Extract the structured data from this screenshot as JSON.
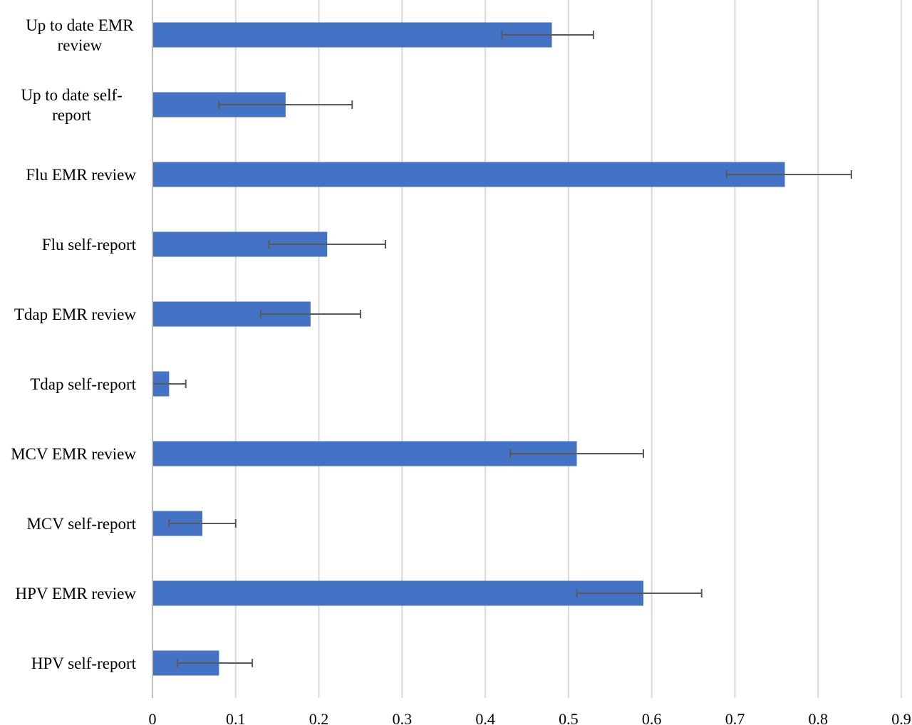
{
  "chart_data": {
    "type": "bar",
    "orientation": "horizontal",
    "title": "",
    "xlabel": "",
    "ylabel": "",
    "xlim": [
      0,
      0.9
    ],
    "x_ticks": [
      "0",
      "0.1",
      "0.2",
      "0.3",
      "0.4",
      "0.5",
      "0.6",
      "0.7",
      "0.8",
      "0.9"
    ],
    "grid": "vertical",
    "categories": [
      [
        "Up to date EMR",
        "review"
      ],
      [
        "Up to date self-",
        "report"
      ],
      [
        "Flu EMR review"
      ],
      [
        "Flu self-report"
      ],
      [
        "Tdap EMR review"
      ],
      [
        "Tdap self-report"
      ],
      [
        "MCV EMR review"
      ],
      [
        "MCV self-report"
      ],
      [
        "HPV EMR review"
      ],
      [
        "HPV self-report"
      ]
    ],
    "values": [
      0.48,
      0.16,
      0.76,
      0.21,
      0.19,
      0.02,
      0.51,
      0.06,
      0.59,
      0.08
    ],
    "error_low": [
      0.42,
      0.08,
      0.69,
      0.14,
      0.13,
      0.0,
      0.43,
      0.02,
      0.51,
      0.03
    ],
    "error_high": [
      0.53,
      0.24,
      0.84,
      0.28,
      0.25,
      0.04,
      0.59,
      0.1,
      0.66,
      0.12
    ],
    "colors": {
      "bar": "#4472C4",
      "error_bar": "#595959",
      "grid": "#D9D9D9",
      "axis": "#BFBFBF"
    }
  }
}
